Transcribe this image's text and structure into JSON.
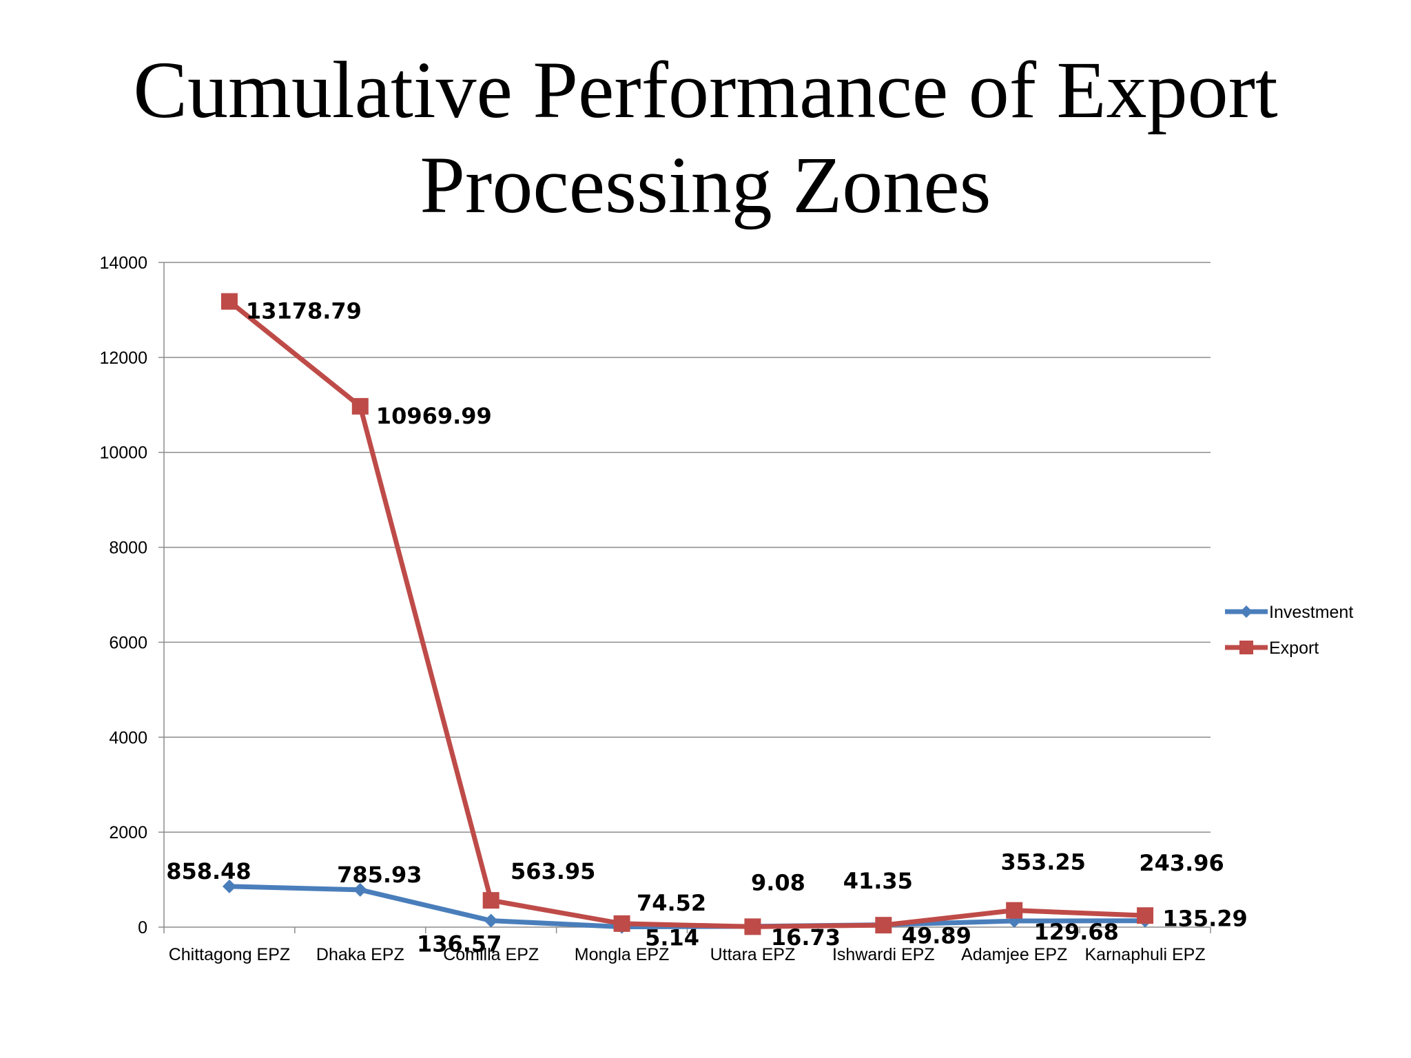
{
  "page": {
    "title_line1": "Cumulative Performance of Export",
    "title_line2": "Processing Zones"
  },
  "chart_data": {
    "type": "line",
    "title": "Cumulative Performance of Export Processing Zones",
    "categories": [
      "Chittagong EPZ",
      "Dhaka EPZ",
      "Comilla EPZ",
      "Mongla EPZ",
      "Uttara EPZ",
      "Ishwardi EPZ",
      "Adamjee EPZ",
      "Karnaphuli EPZ"
    ],
    "series": [
      {
        "name": "Investment",
        "color": "#4a7ebb",
        "marker": "diamond",
        "values": [
          858.48,
          785.93,
          136.57,
          5.14,
          16.73,
          49.89,
          129.68,
          135.29
        ],
        "labels": [
          "858.48",
          "785.93",
          "136.57",
          "5.14",
          "16.73",
          "49.89",
          "129.68",
          "135.29"
        ]
      },
      {
        "name": "Export",
        "color": "#be4b48",
        "marker": "square",
        "values": [
          13178.79,
          10969.99,
          563.95,
          74.52,
          9.08,
          41.35,
          353.25,
          243.96
        ],
        "labels": [
          "13178.79",
          "10969.99",
          "563.95",
          "74.52",
          "9.08",
          "41.35",
          "353.25",
          "243.96"
        ]
      }
    ],
    "y_ticks": [
      "0",
      "2000",
      "4000",
      "6000",
      "8000",
      "10000",
      "12000",
      "14000"
    ],
    "ylim": [
      0,
      14000
    ],
    "grid": true,
    "legend_position": "right",
    "xlabel": "",
    "ylabel": ""
  }
}
